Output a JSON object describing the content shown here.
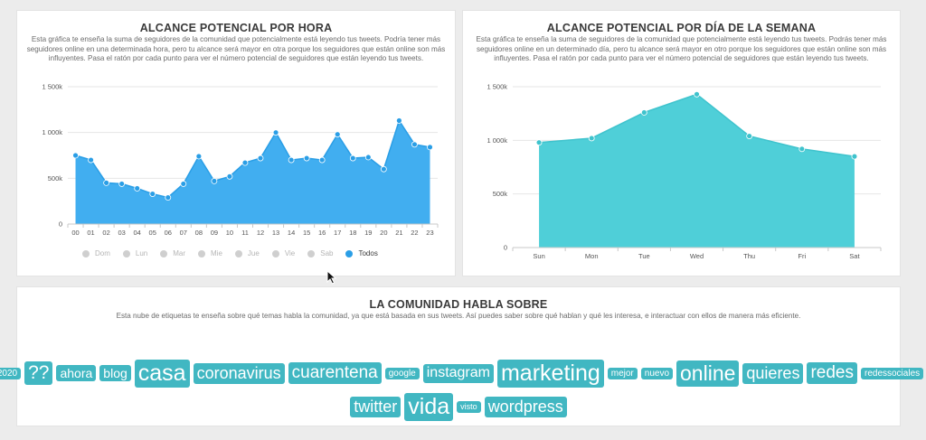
{
  "hour_panel": {
    "title": "ALCANCE POTENCIAL POR HORA",
    "description": "Esta gráfica te enseña la suma de seguidores de la comunidad que potencialmente está leyendo tus tweets. Podría tener más seguidores online en una determinada hora, pero tu alcance será mayor en otra porque los seguidores que están online son más influyentes. Pasa el ratón por cada punto para ver el número potencial de seguidores que están leyendo tus tweets.",
    "legend": [
      {
        "label": "Dom",
        "active": false
      },
      {
        "label": "Lun",
        "active": false
      },
      {
        "label": "Mar",
        "active": false
      },
      {
        "label": "Mie",
        "active": false
      },
      {
        "label": "Jue",
        "active": false
      },
      {
        "label": "Vie",
        "active": false
      },
      {
        "label": "Sab",
        "active": false
      },
      {
        "label": "Todos",
        "active": true
      }
    ]
  },
  "week_panel": {
    "title": "ALCANCE POTENCIAL POR DÍA DE LA SEMANA",
    "description": "Esta gráfica te enseña la suma de seguidores de la comunidad que potencialmente está leyendo tus tweets. Podrás tener más seguidores online en un determinado día, pero tu alcance será mayor en otro porque los seguidores que están online son más influyentes. Pasa el ratón por cada punto para ver el número potencial de seguidores que están leyendo tus tweets."
  },
  "cloud_panel": {
    "title": "LA COMUNIDAD HABLA SOBRE",
    "description": "Esta nube de etiquetas te enseña sobre qué temas habla la comunidad, ya que está basada en sus tweets. Así puedes saber sobre qué hablan y qué les interesa, e interactuar con ellos de manera más eficiente.",
    "row1": [
      {
        "text": "2020",
        "weight": 1
      },
      {
        "text": "??",
        "weight": 4
      },
      {
        "text": "ahora",
        "weight": 2
      },
      {
        "text": "blog",
        "weight": 2
      },
      {
        "text": "casa",
        "weight": 5
      },
      {
        "text": "coronavirus",
        "weight": 3
      },
      {
        "text": "cuarentena",
        "weight": 3.5
      },
      {
        "text": "google",
        "weight": 1
      },
      {
        "text": "instagram",
        "weight": 2.5
      },
      {
        "text": "marketing",
        "weight": 5
      },
      {
        "text": "mejor",
        "weight": 1
      },
      {
        "text": "nuevo",
        "weight": 1
      },
      {
        "text": "online",
        "weight": 4.5
      },
      {
        "text": "quieres",
        "weight": 3
      },
      {
        "text": "redes",
        "weight": 3.5
      },
      {
        "text": "redessociales",
        "weight": 1
      }
    ],
    "row2": [
      {
        "text": "twitter",
        "weight": 3
      },
      {
        "text": "vida",
        "weight": 5
      },
      {
        "text": "visto",
        "weight": 0.8
      },
      {
        "text": "wordpress",
        "weight": 3
      }
    ]
  },
  "chart_data": [
    {
      "type": "area",
      "title": "ALCANCE POTENCIAL POR HORA",
      "x": [
        "00",
        "01",
        "02",
        "03",
        "04",
        "05",
        "06",
        "07",
        "08",
        "09",
        "10",
        "11",
        "12",
        "13",
        "14",
        "15",
        "16",
        "17",
        "18",
        "19",
        "20",
        "21",
        "22",
        "23"
      ],
      "series": [
        {
          "name": "Todos",
          "values": [
            750000,
            700000,
            450000,
            440000,
            390000,
            330000,
            290000,
            440000,
            740000,
            470000,
            520000,
            670000,
            720000,
            1000000,
            700000,
            720000,
            700000,
            980000,
            720000,
            730000,
            600000,
            1130000,
            870000,
            840000
          ]
        }
      ],
      "yticks": [
        "0",
        "500k",
        "1 000k",
        "1 500k"
      ],
      "ylim": [
        0,
        1500000
      ],
      "grid": true,
      "color": "#41aef0"
    },
    {
      "type": "area",
      "title": "ALCANCE POTENCIAL POR DÍA DE LA SEMANA",
      "x": [
        "Sun",
        "Mon",
        "Tue",
        "Wed",
        "Thu",
        "Fri",
        "Sat"
      ],
      "series": [
        {
          "values": [
            980000,
            1020000,
            1260000,
            1430000,
            1040000,
            920000,
            850000
          ]
        }
      ],
      "yticks": [
        "0",
        "500k",
        "1 000k",
        "1 500k"
      ],
      "ylim": [
        0,
        1500000
      ],
      "grid": true,
      "color": "#4fcfd8"
    }
  ],
  "colors": {
    "tag_bg": "#41b7c2",
    "hour_area": "#41aef0",
    "week_area": "#4fcfd8",
    "legend_active": "#2a9ee6"
  }
}
